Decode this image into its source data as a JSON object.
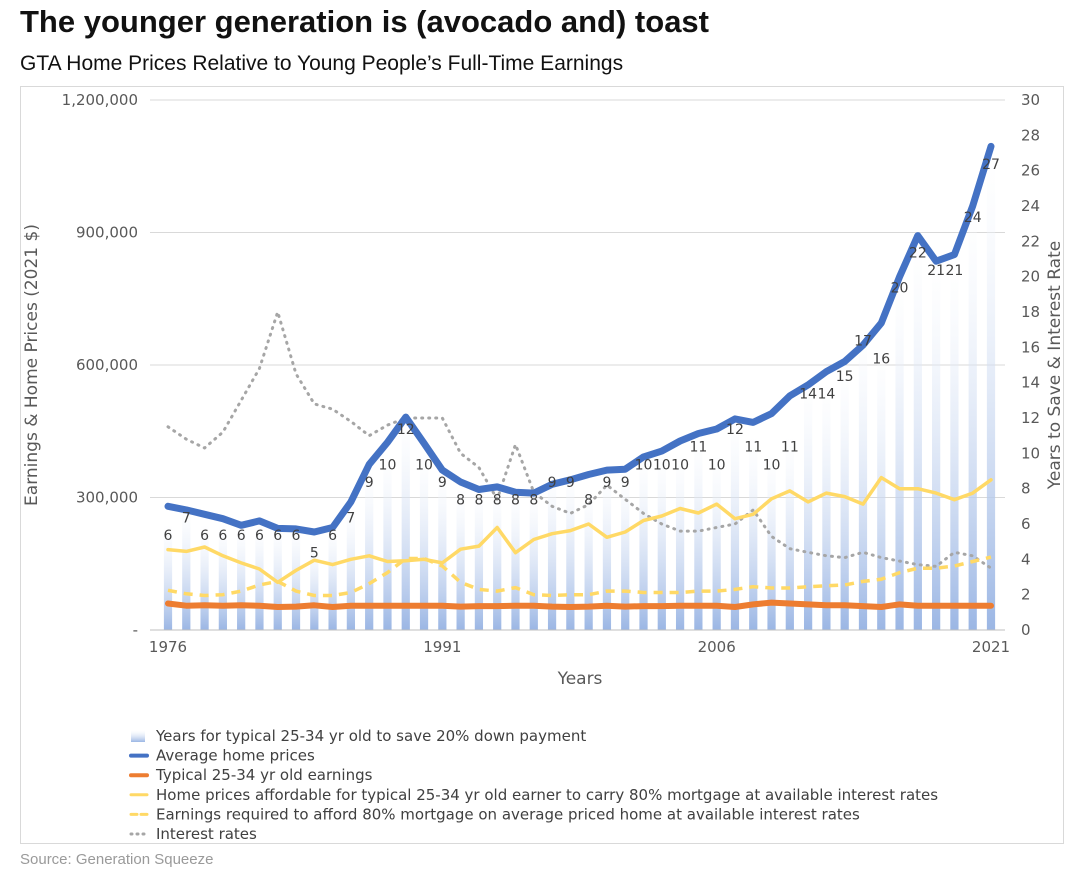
{
  "header": {
    "title": "The younger generation is (avocado and) toast",
    "subtitle": "GTA Home Prices Relative to Young People’s Full-Time Earnings"
  },
  "footer": {
    "source": "Source: Generation Squeeze"
  },
  "colors": {
    "bars": "#9bb6e4",
    "home_prices": "#4472c4",
    "earnings": "#ed7d31",
    "affordable": "#ffd966",
    "required": "#ffd966",
    "interest": "#a6a6a6",
    "gridline": "#d9d9d9",
    "axis_text": "#595959"
  },
  "chart_data": {
    "type": "bar+line",
    "title": "GTA Home Prices Relative to Young People’s Full-Time Earnings",
    "xlabel": "Years",
    "ylabel_left": "Earnings & Home Prices (2021 $)",
    "ylabel_right": "Years to Save & Interest Rate",
    "ylim_left": [
      0,
      1200000
    ],
    "ylim_right": [
      0,
      30
    ],
    "left_ticks": [
      0,
      300000,
      600000,
      900000,
      1200000
    ],
    "left_tick_labels": [
      "-",
      "300,000",
      "600,000",
      "900,000",
      "1,200,000"
    ],
    "right_ticks": [
      0,
      2,
      4,
      6,
      8,
      10,
      12,
      14,
      16,
      18,
      20,
      22,
      24,
      26,
      28,
      30
    ],
    "right_tick_labels": [
      "0",
      "2",
      "4",
      "6",
      "8",
      "10",
      "12",
      "14",
      "16",
      "18",
      "20",
      "22",
      "24",
      "26",
      "28",
      "30"
    ],
    "x_tick_labels": [
      "1976",
      "1991",
      "2006",
      "2021"
    ],
    "x": [
      1976,
      1977,
      1978,
      1979,
      1980,
      1981,
      1982,
      1983,
      1984,
      1985,
      1986,
      1987,
      1988,
      1989,
      1990,
      1991,
      1992,
      1993,
      1994,
      1995,
      1996,
      1997,
      1998,
      1999,
      2000,
      2001,
      2002,
      2003,
      2004,
      2005,
      2006,
      2007,
      2008,
      2009,
      2010,
      2011,
      2012,
      2013,
      2014,
      2015,
      2016,
      2017,
      2018,
      2019,
      2020,
      2021
    ],
    "series": [
      {
        "name": "Years for typical 25-34 yr old to save 20% down payment",
        "axis": "right",
        "type": "bar",
        "values": [
          6,
          7,
          6,
          6,
          6,
          6,
          6,
          6,
          5,
          6,
          7,
          9,
          10,
          12,
          10,
          9,
          8,
          8,
          8,
          8,
          8,
          9,
          9,
          8,
          9,
          9,
          10,
          10,
          10,
          11,
          10,
          12,
          11,
          10,
          11,
          14,
          14,
          15,
          17,
          16,
          20,
          22,
          21,
          21,
          24,
          27
        ],
        "labels": [
          "6",
          "7",
          "6",
          "6",
          "6",
          "6",
          "6",
          "6",
          "5",
          "6",
          "7",
          "9",
          "10",
          "12",
          "10",
          "9",
          "8",
          "8",
          "8",
          "8",
          "8",
          "9",
          "9",
          "8",
          "9",
          "9",
          "10",
          "10",
          "10",
          "11",
          "10",
          "12",
          "11",
          "10",
          "11",
          "14",
          "14",
          "15",
          "17",
          "16",
          "20",
          "22",
          "21",
          "21",
          "24",
          "27"
        ]
      },
      {
        "name": "Average home prices",
        "axis": "left",
        "type": "line",
        "values": [
          280000,
          272000,
          262000,
          252000,
          237000,
          247000,
          230000,
          229000,
          222000,
          232000,
          290000,
          375000,
          425000,
          482000,
          423000,
          362000,
          335000,
          318000,
          324000,
          312000,
          310000,
          330000,
          340000,
          352000,
          362000,
          364000,
          392000,
          405000,
          428000,
          445000,
          455000,
          478000,
          470000,
          490000,
          530000,
          555000,
          585000,
          608000,
          645000,
          695000,
          800000,
          893000,
          835000,
          850000,
          960000,
          1095000
        ]
      },
      {
        "name": "Typical 25-34 yr old earnings",
        "axis": "left",
        "type": "line",
        "values": [
          60000,
          55000,
          56000,
          55000,
          56000,
          55000,
          52000,
          53000,
          56000,
          52000,
          55000,
          55000,
          55000,
          55000,
          55000,
          55000,
          53000,
          54000,
          54000,
          55000,
          55000,
          53000,
          52000,
          53000,
          55000,
          53000,
          54000,
          54000,
          55000,
          55000,
          55000,
          52000,
          58000,
          62000,
          60000,
          58000,
          56000,
          56000,
          54000,
          52000,
          58000,
          55000,
          55000,
          55000,
          55000,
          55000
        ]
      },
      {
        "name": "Home prices affordable for typical 25-34 yr old earner to carry 80% mortgage at available interest rates",
        "axis": "left",
        "type": "line",
        "values": [
          182000,
          178000,
          188000,
          168000,
          152000,
          138000,
          108000,
          135000,
          158000,
          148000,
          160000,
          168000,
          155000,
          157000,
          160000,
          152000,
          183000,
          190000,
          232000,
          175000,
          205000,
          218000,
          225000,
          240000,
          210000,
          222000,
          248000,
          258000,
          275000,
          265000,
          285000,
          252000,
          262000,
          297000,
          315000,
          290000,
          310000,
          302000,
          285000,
          345000,
          320000,
          320000,
          310000,
          295000,
          310000,
          340000
        ]
      },
      {
        "name": "Earnings required to afford 80% mortgage on average priced home at available interest rates",
        "axis": "left",
        "type": "line",
        "dashed": true,
        "values": [
          90000,
          82000,
          78000,
          80000,
          88000,
          102000,
          110000,
          88000,
          78000,
          78000,
          85000,
          105000,
          130000,
          162000,
          162000,
          145000,
          108000,
          92000,
          88000,
          96000,
          80000,
          78000,
          80000,
          80000,
          88000,
          88000,
          85000,
          85000,
          85000,
          88000,
          88000,
          92000,
          98000,
          95000,
          95000,
          98000,
          100000,
          102000,
          110000,
          115000,
          130000,
          140000,
          140000,
          145000,
          155000,
          165000
        ]
      },
      {
        "name": "Interest rates",
        "axis": "right",
        "type": "line",
        "dotted": true,
        "values": [
          11.5,
          10.8,
          10.3,
          11.2,
          13.0,
          14.8,
          18.0,
          14.5,
          12.8,
          12.5,
          11.8,
          11.0,
          11.6,
          12.0,
          12.0,
          12.0,
          10.0,
          9.2,
          7.4,
          10.5,
          7.8,
          7.0,
          6.6,
          7.1,
          8.2,
          7.4,
          6.6,
          6.0,
          5.6,
          5.6,
          5.8,
          6.0,
          6.8,
          5.3,
          4.6,
          4.4,
          4.2,
          4.1,
          4.4,
          4.1,
          3.9,
          3.7,
          3.6,
          4.4,
          4.2,
          3.5
        ]
      }
    ],
    "legend_position": "bottom"
  },
  "legend": {
    "items": [
      "Years for typical 25-34 yr old to save 20% down payment",
      "Average home prices",
      "Typical 25-34 yr old earnings",
      "Home prices affordable for typical 25-34 yr old earner to carry 80% mortgage at available interest rates",
      "Earnings required to afford 80% mortgage on average priced home at available interest rates",
      "Interest rates"
    ]
  }
}
